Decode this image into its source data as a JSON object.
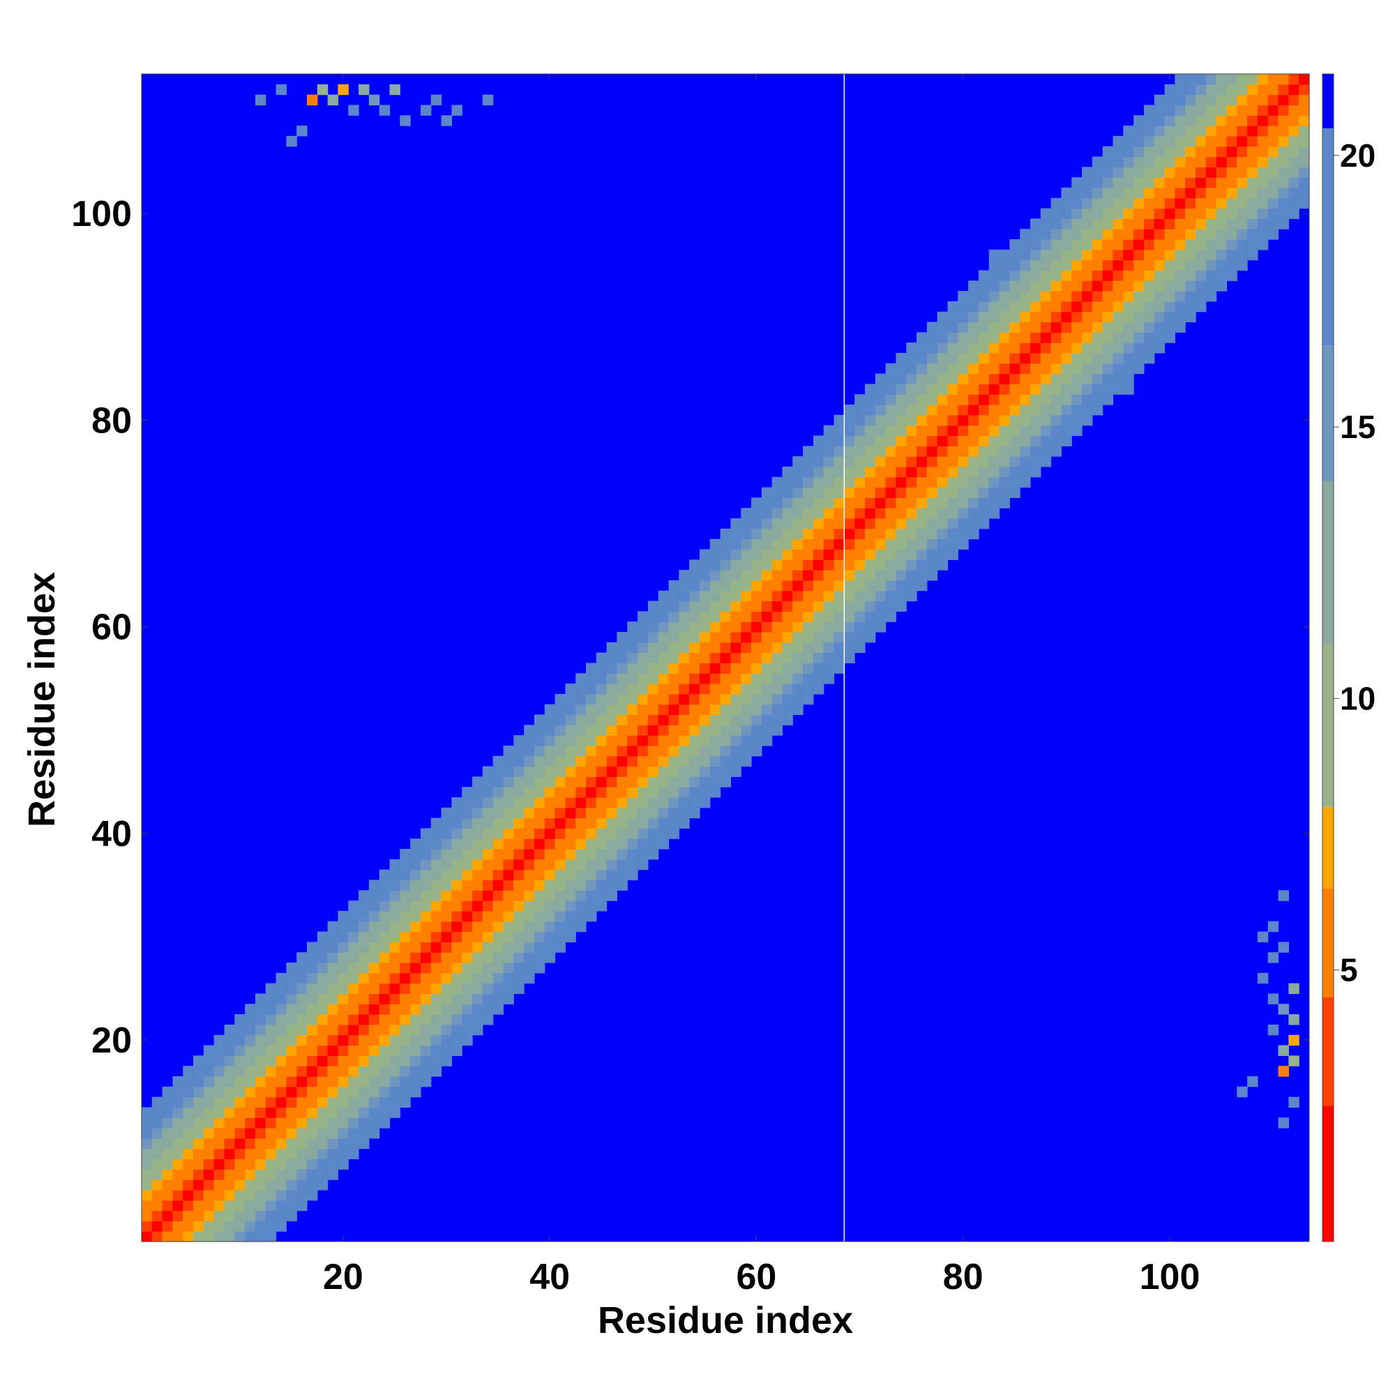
{
  "chart_data": {
    "type": "heatmap",
    "title": "",
    "xlabel": "Residue index",
    "ylabel": "Residue index",
    "n_residues": 113,
    "xlim": [
      1,
      113
    ],
    "ylim": [
      1,
      113
    ],
    "x_ticks": [
      20,
      40,
      60,
      80,
      100
    ],
    "y_ticks": [
      20,
      40,
      60,
      80,
      100
    ],
    "x_tick_labels": [
      "20",
      "40",
      "60",
      "80",
      "100"
    ],
    "y_tick_labels": [
      "20",
      "40",
      "60",
      "80",
      "100"
    ],
    "colorbar": {
      "ticks": [
        5,
        10,
        15,
        20
      ],
      "tick_labels": [
        "5",
        "10",
        "15",
        "20"
      ],
      "range": [
        0,
        21.5
      ],
      "colors": [
        {
          "max": 2.5,
          "color": "#ff0000"
        },
        {
          "max": 4.5,
          "color": "#ff4000"
        },
        {
          "max": 6.5,
          "color": "#ff8000"
        },
        {
          "max": 8.0,
          "color": "#ffa500"
        },
        {
          "max": 11.0,
          "color": "#99b389"
        },
        {
          "max": 14.0,
          "color": "#8aaa9f"
        },
        {
          "max": 16.5,
          "color": "#6f96bf"
        },
        {
          "max": 20.5,
          "color": "#5b86c9"
        },
        {
          "max": 99,
          "color": "#0000ff"
        }
      ]
    },
    "description_values": {
      "diagonal_band": "distance increases from ~2 on the diagonal to ~20 at |i-j|≈12",
      "break_column": 68
    },
    "off_diagonal_patches": [
      {
        "i": 20,
        "j": 112,
        "value": 7
      },
      {
        "i": 17,
        "j": 111,
        "value": 6
      },
      {
        "i": 18,
        "j": 112,
        "value": 11
      },
      {
        "i": 19,
        "j": 111,
        "value": 13
      },
      {
        "i": 21,
        "j": 110,
        "value": 17
      },
      {
        "i": 22,
        "j": 112,
        "value": 12
      },
      {
        "i": 23,
        "j": 111,
        "value": 15
      },
      {
        "i": 24,
        "j": 110,
        "value": 17
      },
      {
        "i": 25,
        "j": 112,
        "value": 14
      },
      {
        "i": 26,
        "j": 109,
        "value": 18
      },
      {
        "i": 28,
        "j": 110,
        "value": 17
      },
      {
        "i": 29,
        "j": 111,
        "value": 18
      },
      {
        "i": 30,
        "j": 109,
        "value": 18
      },
      {
        "i": 31,
        "j": 110,
        "value": 18
      },
      {
        "i": 16,
        "j": 108,
        "value": 18
      },
      {
        "i": 15,
        "j": 107,
        "value": 18
      },
      {
        "i": 14,
        "j": 112,
        "value": 17
      },
      {
        "i": 12,
        "j": 111,
        "value": 18
      },
      {
        "i": 34,
        "j": 111,
        "value": 18
      },
      {
        "i": 85,
        "j": 96,
        "value": 18
      },
      {
        "i": 88,
        "j": 98,
        "value": 18
      },
      {
        "i": 90,
        "j": 100,
        "value": 18
      },
      {
        "i": 92,
        "j": 101,
        "value": 18
      },
      {
        "i": 94,
        "j": 103,
        "value": 18
      },
      {
        "i": 96,
        "j": 83,
        "value": 18
      },
      {
        "i": 98,
        "j": 86,
        "value": 18
      },
      {
        "i": 100,
        "j": 88,
        "value": 18
      },
      {
        "i": 102,
        "j": 90,
        "value": 18
      }
    ]
  }
}
